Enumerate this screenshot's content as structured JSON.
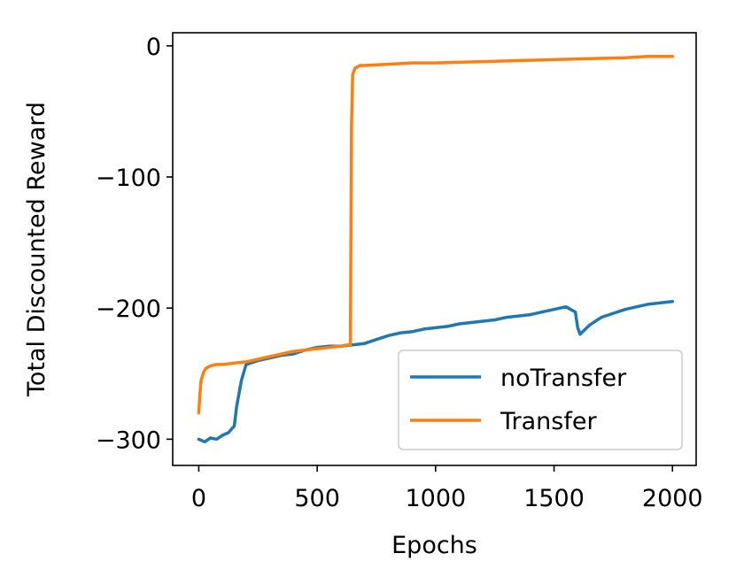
{
  "chart_data": {
    "type": "line",
    "title": "",
    "xlabel": "Epochs",
    "ylabel": "Total Discounted Reward",
    "xlim": [
      -110,
      2100
    ],
    "ylim": [
      -320,
      10
    ],
    "xticks": [
      0,
      500,
      1000,
      1500,
      2000
    ],
    "xtick_labels": [
      "0",
      "500",
      "1000",
      "1500",
      "2000"
    ],
    "yticks": [
      0,
      -100,
      -200,
      -300
    ],
    "ytick_labels": [
      "0",
      "−100",
      "−200",
      "−300"
    ],
    "grid": false,
    "legend_position": "lower-right",
    "series": [
      {
        "name": "noTransfer",
        "color": "#1f77b4",
        "x": [
          0,
          25,
          50,
          75,
          100,
          125,
          150,
          160,
          170,
          180,
          200,
          250,
          300,
          350,
          400,
          450,
          500,
          550,
          600,
          650,
          700,
          750,
          800,
          850,
          900,
          950,
          1000,
          1050,
          1100,
          1150,
          1200,
          1250,
          1300,
          1350,
          1400,
          1450,
          1500,
          1550,
          1590,
          1600,
          1610,
          1650,
          1700,
          1750,
          1800,
          1850,
          1900,
          1950,
          2000
        ],
        "y": [
          -300,
          -302,
          -299,
          -300,
          -297,
          -295,
          -290,
          -275,
          -265,
          -255,
          -243,
          -240,
          -238,
          -236,
          -235,
          -232,
          -230,
          -229,
          -229,
          -228,
          -227,
          -224,
          -221,
          -219,
          -218,
          -216,
          -215,
          -214,
          -212,
          -211,
          -210,
          -209,
          -207,
          -206,
          -205,
          -203,
          -201,
          -199,
          -203,
          -215,
          -220,
          -213,
          -207,
          -204,
          -201,
          -199,
          -197,
          -196,
          -195
        ]
      },
      {
        "name": "Transfer",
        "color": "#ff7f0e",
        "x": [
          0,
          5,
          10,
          20,
          30,
          50,
          75,
          100,
          150,
          200,
          250,
          300,
          350,
          400,
          450,
          500,
          550,
          600,
          630,
          640,
          645,
          650,
          660,
          680,
          700,
          800,
          900,
          1000,
          1200,
          1400,
          1600,
          1800,
          1900,
          2000
        ],
        "y": [
          -280,
          -265,
          -255,
          -249,
          -246,
          -244,
          -243,
          -243,
          -242,
          -241,
          -239,
          -237,
          -235,
          -233,
          -232,
          -231,
          -230,
          -229,
          -228,
          -228,
          -60,
          -22,
          -17,
          -15,
          -15,
          -14,
          -13,
          -13,
          -12,
          -11,
          -10,
          -9,
          -8,
          -8
        ]
      }
    ]
  }
}
